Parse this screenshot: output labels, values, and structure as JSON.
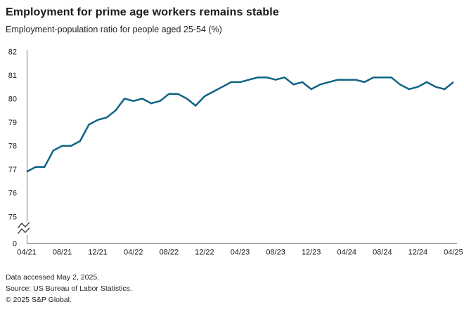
{
  "header": {
    "title": "Employment for prime age workers remains stable",
    "subtitle": "Employment-population ratio for people aged 25-54 (%)"
  },
  "footer": {
    "accessed": "Data accessed May 2, 2025.",
    "source": "Source: US Bureau of Labor Statistics.",
    "copyright": "© 2025 S&P Global."
  },
  "colors": {
    "line": "#0e6384",
    "axis": "#949494",
    "break_glyph": "#3f3f3f",
    "tick_text": "#1a1a1a"
  },
  "chart_data": {
    "type": "line",
    "title": "Employment for prime age workers remains stable",
    "subtitle": "Employment-population ratio for people aged 25-54 (%)",
    "x": [
      "04/21",
      "05/21",
      "06/21",
      "07/21",
      "08/21",
      "09/21",
      "10/21",
      "11/21",
      "12/21",
      "01/22",
      "02/22",
      "03/22",
      "04/22",
      "05/22",
      "06/22",
      "07/22",
      "08/22",
      "09/22",
      "10/22",
      "11/22",
      "12/22",
      "01/23",
      "02/23",
      "03/23",
      "04/23",
      "05/23",
      "06/23",
      "07/23",
      "08/23",
      "09/23",
      "10/23",
      "11/23",
      "12/23",
      "01/24",
      "02/24",
      "03/24",
      "04/24",
      "05/24",
      "06/24",
      "07/24",
      "08/24",
      "09/24",
      "10/24",
      "11/24",
      "12/24",
      "01/25",
      "02/25",
      "03/25",
      "04/25"
    ],
    "values": [
      76.9,
      77.1,
      77.1,
      77.8,
      78.0,
      78.0,
      78.2,
      78.9,
      79.1,
      79.2,
      79.5,
      80.0,
      79.9,
      80.0,
      79.8,
      79.9,
      80.2,
      80.2,
      80.0,
      79.7,
      80.1,
      80.3,
      80.5,
      80.7,
      80.7,
      80.8,
      80.9,
      80.9,
      80.8,
      80.9,
      80.6,
      80.7,
      80.4,
      80.6,
      80.7,
      80.8,
      80.8,
      80.8,
      80.7,
      80.9,
      80.9,
      80.9,
      80.6,
      80.4,
      80.5,
      80.7,
      80.5,
      80.4,
      80.7
    ],
    "x_ticklabels": [
      "04/21",
      "08/21",
      "12/21",
      "04/22",
      "08/22",
      "12/22",
      "04/23",
      "08/23",
      "12/23",
      "04/24",
      "08/24",
      "12/24",
      "04/25"
    ],
    "y_ticks": [
      82,
      81,
      80,
      79,
      78,
      77,
      76,
      75
    ],
    "y_axis_break_label": "0",
    "ylim": [
      75,
      82
    ],
    "xlabel": "",
    "ylabel": "",
    "grid": false,
    "legend": null,
    "axis_break": true
  }
}
